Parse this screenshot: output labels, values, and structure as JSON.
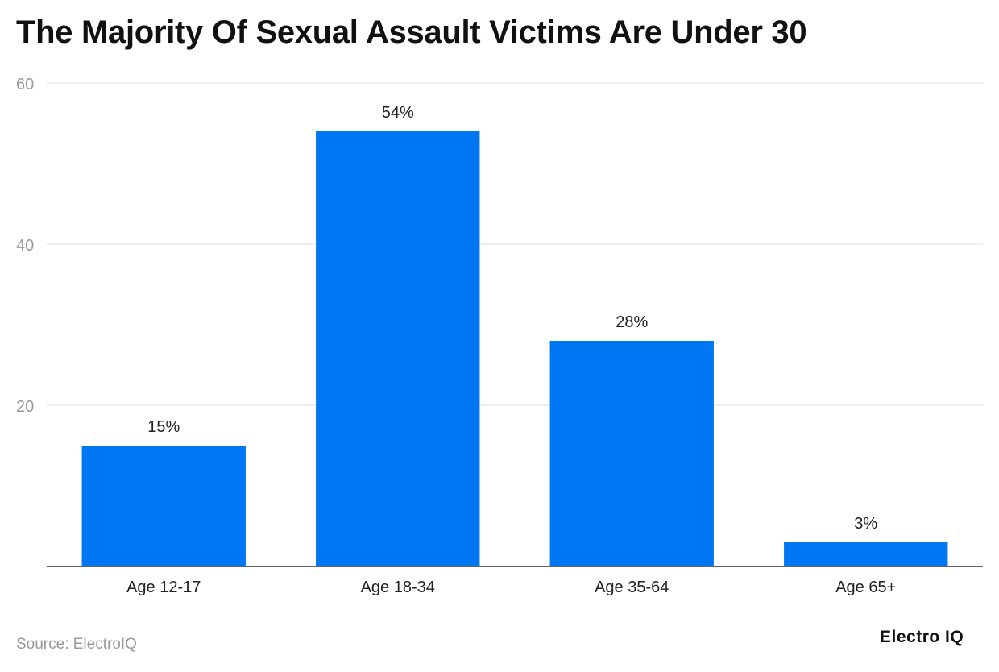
{
  "page": {
    "title": "The Majority Of Sexual Assault Victims Are Under 30",
    "source": "Source: ElectroIQ",
    "brand": "Electro IQ"
  },
  "chart_data": {
    "type": "bar",
    "categories": [
      "Age 12-17",
      "Age 18-34",
      "Age 35-64",
      "Age 65+"
    ],
    "values": [
      15,
      54,
      28,
      3
    ],
    "data_labels": [
      "15%",
      "54%",
      "28%",
      "3%"
    ],
    "title": "The Majority Of Sexual Assault Victims Are Under 30",
    "xlabel": "",
    "ylabel": "",
    "ylim": [
      0,
      60
    ],
    "yticks": [
      20,
      40,
      60
    ],
    "grid": true,
    "legend": "none",
    "bar_color": "#0077f2"
  }
}
